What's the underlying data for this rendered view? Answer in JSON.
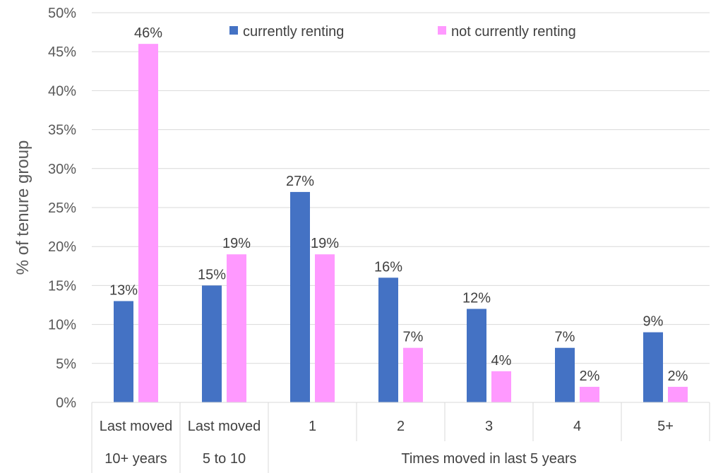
{
  "chart_data": {
    "type": "bar",
    "ylabel": "% of tenure group",
    "ylim": [
      0,
      50
    ],
    "yticks": [
      0,
      5,
      10,
      15,
      20,
      25,
      30,
      35,
      40,
      45,
      50
    ],
    "ytick_labels": [
      "0%",
      "5%",
      "10%",
      "15%",
      "20%",
      "25%",
      "30%",
      "35%",
      "40%",
      "45%",
      "50%"
    ],
    "categories": [
      [
        "Last moved",
        "10+ years"
      ],
      [
        "Last moved",
        "5 to 10"
      ],
      [
        "1"
      ],
      [
        "2"
      ],
      [
        "3"
      ],
      [
        "4"
      ],
      [
        "5+"
      ]
    ],
    "group_label": "Times moved in last 5 years",
    "series": [
      {
        "name": "currently renting",
        "color": "#4472c4",
        "values": [
          13,
          15,
          27,
          16,
          12,
          7,
          9
        ],
        "labels": [
          "13%",
          "15%",
          "27%",
          "16%",
          "12%",
          "7%",
          "9%"
        ]
      },
      {
        "name": "not currently renting",
        "color": "#ff99ff",
        "values": [
          46,
          19,
          19,
          7,
          4,
          2,
          2
        ],
        "labels": [
          "46%",
          "19%",
          "19%",
          "7%",
          "4%",
          "2%",
          "2%"
        ]
      }
    ],
    "legend": "top-center",
    "grid": true
  }
}
